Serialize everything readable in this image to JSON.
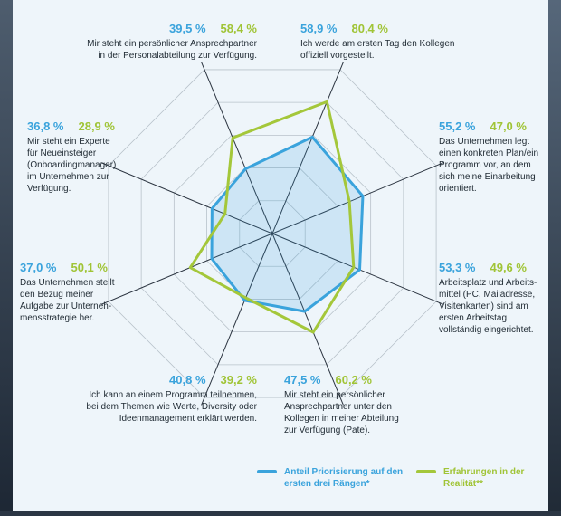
{
  "chart_data": {
    "type": "radar",
    "scale_max": 100,
    "series": [
      {
        "name": "Anteil Priorisierung auf den ersten drei Rängen*",
        "color": "#3aa3dc"
      },
      {
        "name": "Erfahrungen in der Realität**",
        "color": "#a4c73a"
      }
    ],
    "axes": [
      {
        "blue": "58,9 %",
        "green": "80,4 %",
        "blue_value": 58.9,
        "green_value": 80.4,
        "text": "Ich werde am ersten Tag den Kollegen\noffiziell vorgestellt."
      },
      {
        "blue": "55,2 %",
        "green": "47,0 %",
        "blue_value": 55.2,
        "green_value": 47.0,
        "text": "Das Unternehmen legt\neinen konkreten Plan/ein\nProgramm vor, an dem\nsich meine Einarbeitung\norientiert."
      },
      {
        "blue": "53,3 %",
        "green": "49,6 %",
        "blue_value": 53.3,
        "green_value": 49.6,
        "text": "Arbeitsplatz und Arbeits-\nmittel (PC, Mailadresse,\nVisitenkarten) sind am\nersten Arbeitstag\nvollständig eingerichtet."
      },
      {
        "blue": "47,5 %",
        "green": "60,2 %",
        "blue_value": 47.5,
        "green_value": 60.2,
        "text": "Mir steht ein persönlicher\nAnsprechpartner unter den\nKollegen in meiner Abteilung\nzur Verfügung (Pate)."
      },
      {
        "blue": "40,8 %",
        "green": "39,2 %",
        "blue_value": 40.8,
        "green_value": 39.2,
        "text": "Ich kann an einem Programm teilnehmen,\nbei dem Themen wie Werte, Diversity oder\nIdeenmanagement erklärt werden."
      },
      {
        "blue": "37,0 %",
        "green": "50,1 %",
        "blue_value": 37.0,
        "green_value": 50.1,
        "text": "Das Unternehmen stellt\nden Bezug meiner\nAufgabe zur Unterneh-\nmensstrategie her."
      },
      {
        "blue": "36,8 %",
        "green": "28,9 %",
        "blue_value": 36.8,
        "green_value": 28.9,
        "text": "Mir steht ein Experte\nfür Neueinsteiger\n(Onboardingmanager)\nim Unternehmen zur\nVerfügung."
      },
      {
        "blue": "39,5 %",
        "green": "58,4 %",
        "blue_value": 39.5,
        "green_value": 58.4,
        "text": "Mir steht ein persönlicher Ansprechpartner\nin der Personalabteilung zur Verfügung."
      }
    ]
  }
}
